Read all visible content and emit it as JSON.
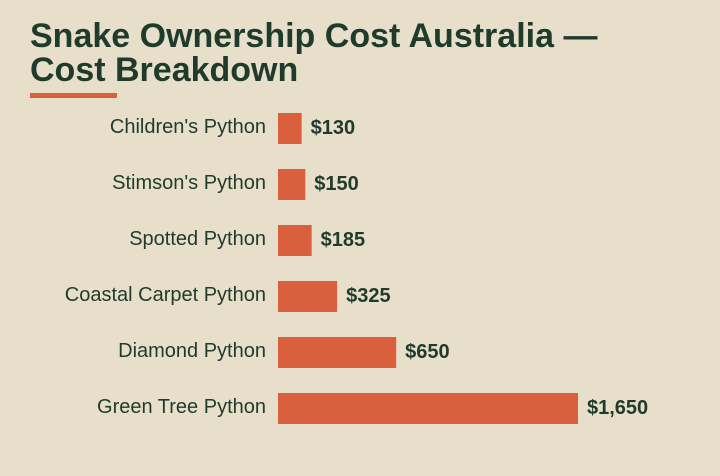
{
  "chart_data": {
    "type": "bar",
    "orientation": "horizontal",
    "title": "Snake Ownership Cost Australia — Cost Breakdown",
    "categories": [
      "Children's Python",
      "Stimson's Python",
      "Spotted Python",
      "Coastal Carpet Python",
      "Diamond Python",
      "Green Tree Python"
    ],
    "values": [
      130,
      150,
      185,
      325,
      650,
      1650
    ],
    "value_labels": [
      "$130",
      "$150",
      "$185",
      "$325",
      "$650",
      "$1,650"
    ],
    "xlim": [
      0,
      1650
    ],
    "grid": false,
    "legend": "none"
  },
  "colors": {
    "background": "#e8dfca",
    "bar": "#d95f3d",
    "text": "#1f3b2c"
  }
}
